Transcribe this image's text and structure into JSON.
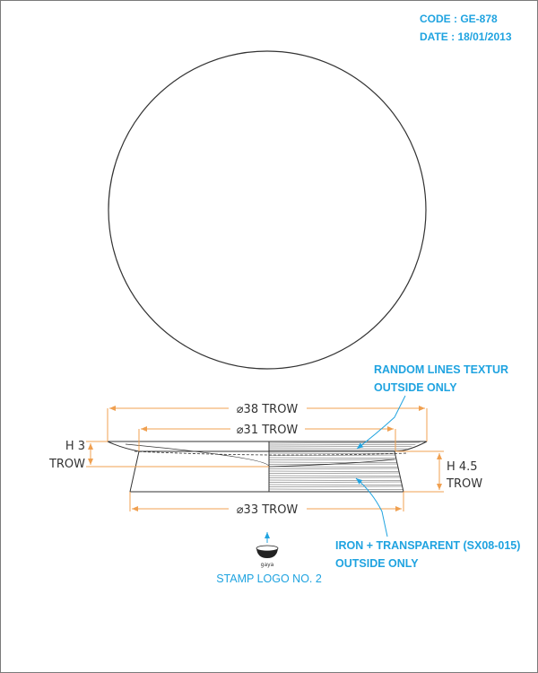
{
  "header": {
    "code": "CODE : GE-878",
    "date": "DATE : 18/01/2013"
  },
  "dimensions": {
    "top_diameter": "⌀38 TROW",
    "inner_diameter": "⌀31 TROW",
    "bottom_diameter": "⌀33 TROW",
    "left_height_line1": "H 3",
    "left_height_line2": "TROW",
    "right_height_line1": "H 4.5",
    "right_height_line2": "TROW"
  },
  "callouts": {
    "texture_line1": "RANDOM LINES TEXTUR",
    "texture_line2": "OUTSIDE ONLY",
    "material_line1": "IRON + TRANSPARENT (SX08-015)",
    "material_line2": "OUTSIDE ONLY"
  },
  "stamp": {
    "logo_text": "gaya",
    "label": "STAMP LOGO NO. 2"
  },
  "colors": {
    "accent": "#1fa3e0",
    "dimension": "#f0a050",
    "outline": "#333333"
  }
}
